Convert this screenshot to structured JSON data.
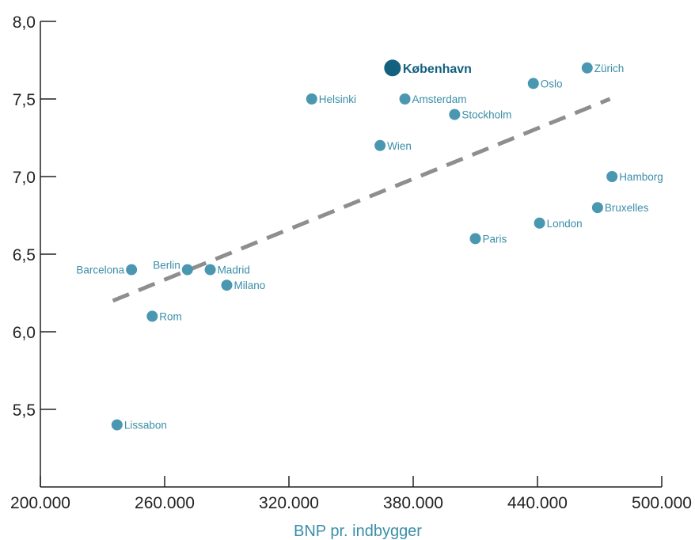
{
  "chart_data": {
    "type": "scatter",
    "title": "",
    "xlabel": "BNP pr. indbygger",
    "ylabel": "",
    "xlim": [
      200000,
      500000
    ],
    "ylim": [
      5.0,
      8.0
    ],
    "x_ticks": [
      200000,
      260000,
      320000,
      380000,
      440000,
      500000
    ],
    "x_tick_labels": [
      "200.000",
      "260.000",
      "320.000",
      "380.000",
      "440.000",
      "500.000"
    ],
    "y_ticks": [
      5.5,
      6.0,
      6.5,
      7.0,
      7.5,
      8.0
    ],
    "y_tick_labels": [
      "5,5",
      "6,0",
      "6,5",
      "7,0",
      "7,5",
      "8,0"
    ],
    "grid": false,
    "colors": {
      "point": "#4a97b2",
      "highlight": "#13607f",
      "trend": "#8e8e8e",
      "label": "#3a8ea8",
      "axis": "#222222"
    },
    "points": [
      {
        "label": "København",
        "x": 370000,
        "y": 7.7,
        "highlight": true
      },
      {
        "label": "Zürich",
        "x": 464000,
        "y": 7.7
      },
      {
        "label": "Oslo",
        "x": 438000,
        "y": 7.6
      },
      {
        "label": "Helsinki",
        "x": 331000,
        "y": 7.5
      },
      {
        "label": "Amsterdam",
        "x": 376000,
        "y": 7.5
      },
      {
        "label": "Stockholm",
        "x": 400000,
        "y": 7.4
      },
      {
        "label": "Wien",
        "x": 364000,
        "y": 7.2
      },
      {
        "label": "Hamborg",
        "x": 476000,
        "y": 7.0
      },
      {
        "label": "Bruxelles",
        "x": 469000,
        "y": 6.8
      },
      {
        "label": "London",
        "x": 441000,
        "y": 6.7
      },
      {
        "label": "Paris",
        "x": 410000,
        "y": 6.6
      },
      {
        "label": "Barcelona",
        "x": 244000,
        "y": 6.4
      },
      {
        "label": "Berlin",
        "x": 271000,
        "y": 6.4
      },
      {
        "label": "Madrid",
        "x": 282000,
        "y": 6.4
      },
      {
        "label": "Milano",
        "x": 290000,
        "y": 6.3
      },
      {
        "label": "Rom",
        "x": 254000,
        "y": 6.1
      },
      {
        "label": "Lissabon",
        "x": 237000,
        "y": 5.4
      }
    ],
    "trendline": {
      "x": [
        235000,
        475000
      ],
      "y": [
        6.2,
        7.5
      ]
    }
  }
}
